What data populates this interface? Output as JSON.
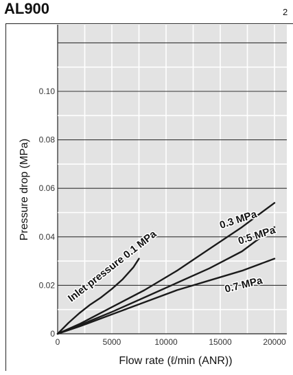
{
  "header": {
    "title": "AL900",
    "page_number": "2"
  },
  "chart_data": {
    "type": "line",
    "title": "AL900",
    "xlabel": "Flow rate (ℓ/min (ANR))",
    "ylabel": "Pressure drop (MPa)",
    "xlim": [
      0,
      20000
    ],
    "ylim": [
      0,
      0.1
    ],
    "x_ticks": [
      "0",
      "5000",
      "10000",
      "15000",
      "20000"
    ],
    "y_ticks": [
      "0",
      "0.02",
      "0.04",
      "0.06",
      "0.08",
      "0.10"
    ],
    "grid": true,
    "background": "#e3e3e3",
    "line_color": "#1a1a1a",
    "series": [
      {
        "name": "Inlet pressure 0.1 MPa",
        "x": [
          0,
          1000,
          2000,
          3000,
          4000,
          5000,
          6000,
          7000,
          7500
        ],
        "y": [
          0,
          0.0045,
          0.0085,
          0.012,
          0.015,
          0.0185,
          0.0225,
          0.0275,
          0.031
        ]
      },
      {
        "name": "0.3 MPa",
        "x": [
          0,
          2000,
          5000,
          8000,
          11000,
          14000,
          17000,
          20000
        ],
        "y": [
          0,
          0.004,
          0.011,
          0.018,
          0.026,
          0.035,
          0.044,
          0.054
        ]
      },
      {
        "name": "0.5 MPa",
        "x": [
          0,
          2000,
          5000,
          8000,
          11000,
          14000,
          17000,
          20000
        ],
        "y": [
          0,
          0.0035,
          0.009,
          0.015,
          0.021,
          0.027,
          0.034,
          0.044
        ]
      },
      {
        "name": "0.7 MPa",
        "x": [
          0,
          2000,
          5000,
          8000,
          11000,
          14000,
          17000,
          20000
        ],
        "y": [
          0,
          0.003,
          0.008,
          0.013,
          0.018,
          0.022,
          0.026,
          0.031
        ]
      }
    ]
  }
}
